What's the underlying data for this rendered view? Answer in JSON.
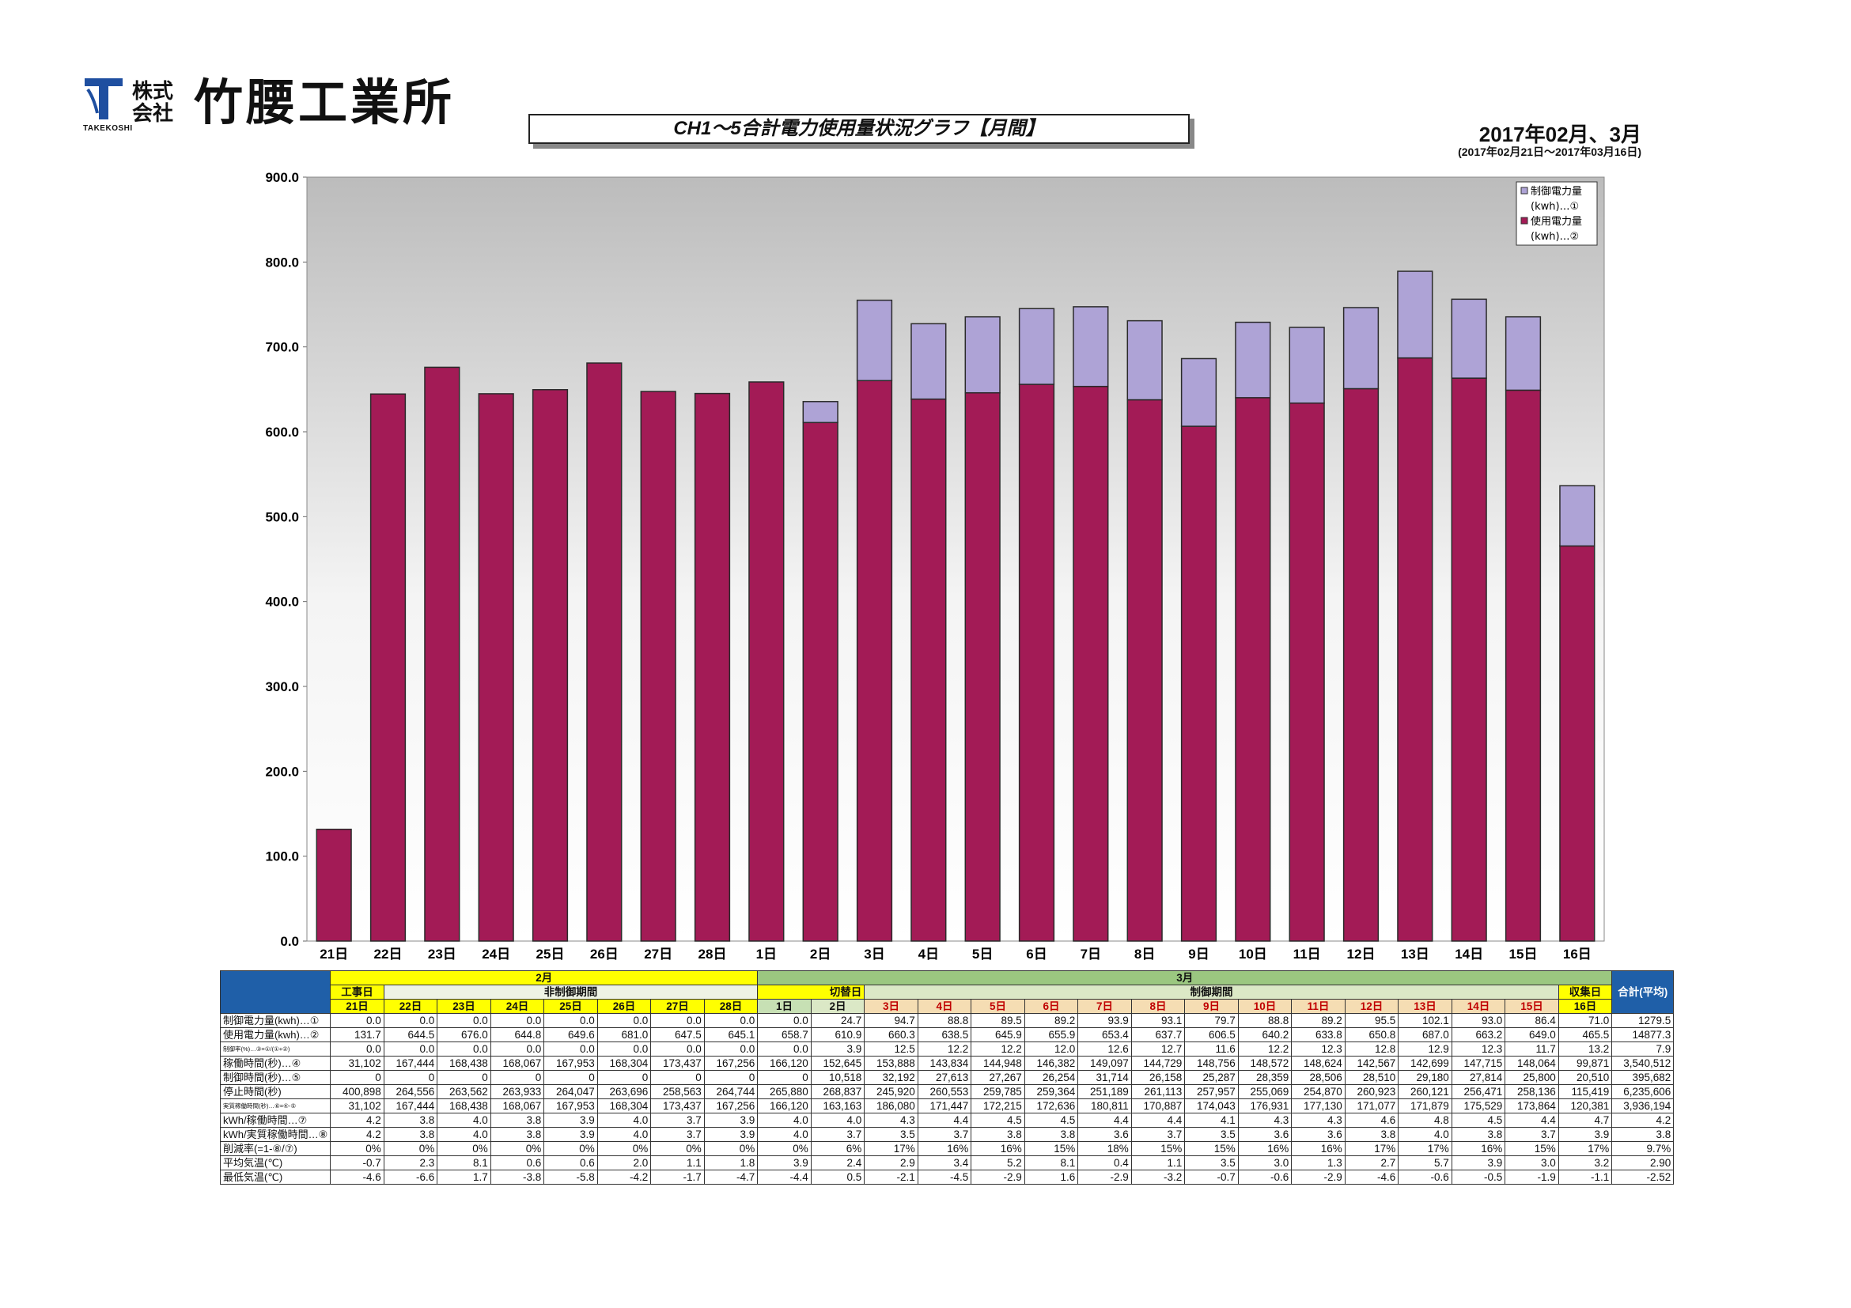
{
  "header": {
    "company_small_1": "株式",
    "company_small_2": "会社",
    "company_name": "竹腰工業所",
    "company_roman": "TAKEKOSHI",
    "title": "CH1～5合計電力使用量状況グラフ【月間】",
    "period": "2017年02月、3月",
    "period_range": "(2017年02月21日～2017年03月16日)"
  },
  "colors": {
    "used_bar": "#a31b56",
    "control_bar": "#aea3d6",
    "plot_background": "#e6e6e6",
    "table_blue": "#1f5fa8",
    "table_yellow": "#ffff00",
    "table_green": "#9bc780"
  },
  "chart_data": {
    "type": "bar",
    "stacked": true,
    "categories": [
      "21日",
      "22日",
      "23日",
      "24日",
      "25日",
      "26日",
      "27日",
      "28日",
      "1日",
      "2日",
      "3日",
      "4日",
      "5日",
      "6日",
      "7日",
      "8日",
      "9日",
      "10日",
      "11日",
      "12日",
      "13日",
      "14日",
      "15日",
      "16日"
    ],
    "series": [
      {
        "name": "使用電力量(kwh)…②",
        "color": "#a31b56",
        "values": [
          131.7,
          644.5,
          676.0,
          644.8,
          649.6,
          681.0,
          647.5,
          645.1,
          658.7,
          610.9,
          660.3,
          638.5,
          645.9,
          655.9,
          653.4,
          637.7,
          606.5,
          640.2,
          633.8,
          650.8,
          687.0,
          663.2,
          649.0,
          465.5
        ]
      },
      {
        "name": "制御電力量(kwh)…①",
        "color": "#aea3d6",
        "values": [
          0.0,
          0.0,
          0.0,
          0.0,
          0.0,
          0.0,
          0.0,
          0.0,
          0.0,
          24.7,
          94.7,
          88.8,
          89.5,
          89.2,
          93.9,
          93.1,
          79.7,
          88.8,
          89.2,
          95.5,
          102.1,
          93.0,
          86.4,
          71.0
        ]
      }
    ],
    "ylim": [
      0,
      900
    ],
    "yticks": [
      "0.0",
      "100.0",
      "200.0",
      "300.0",
      "400.0",
      "500.0",
      "600.0",
      "700.0",
      "800.0",
      "900.0"
    ],
    "legend": [
      "制御電力量",
      "(kwh)…①",
      "使用電力量",
      "(kwh)…②"
    ],
    "legend_position": "top-right",
    "grid": false
  },
  "table": {
    "month_feb": "2月",
    "month_mar": "3月",
    "period_labels": {
      "koji": "工事日",
      "hiseigyo": "非制御期間",
      "kirikae": "切替日",
      "seigyo": "制御期間",
      "shuushuu": "収集日"
    },
    "total_header": "合計(平均)",
    "days": [
      "21日",
      "22日",
      "23日",
      "24日",
      "25日",
      "26日",
      "27日",
      "28日",
      "1日",
      "2日",
      "3日",
      "4日",
      "5日",
      "6日",
      "7日",
      "8日",
      "9日",
      "10日",
      "11日",
      "12日",
      "13日",
      "14日",
      "15日",
      "16日"
    ],
    "rows": [
      {
        "label": "制御電力量(kwh)…①",
        "values": [
          "0.0",
          "0.0",
          "0.0",
          "0.0",
          "0.0",
          "0.0",
          "0.0",
          "0.0",
          "0.0",
          "24.7",
          "94.7",
          "88.8",
          "89.5",
          "89.2",
          "93.9",
          "93.1",
          "79.7",
          "88.8",
          "89.2",
          "95.5",
          "102.1",
          "93.0",
          "86.4",
          "71.0"
        ],
        "total": "1279.5"
      },
      {
        "label": "使用電力量(kwh)…②",
        "values": [
          "131.7",
          "644.5",
          "676.0",
          "644.8",
          "649.6",
          "681.0",
          "647.5",
          "645.1",
          "658.7",
          "610.9",
          "660.3",
          "638.5",
          "645.9",
          "655.9",
          "653.4",
          "637.7",
          "606.5",
          "640.2",
          "633.8",
          "650.8",
          "687.0",
          "663.2",
          "649.0",
          "465.5"
        ],
        "total": "14877.3"
      },
      {
        "label": "制御率(%)…③=①/(①+②)",
        "values": [
          "0.0",
          "0.0",
          "0.0",
          "0.0",
          "0.0",
          "0.0",
          "0.0",
          "0.0",
          "0.0",
          "3.9",
          "12.5",
          "12.2",
          "12.2",
          "12.0",
          "12.6",
          "12.7",
          "11.6",
          "12.2",
          "12.3",
          "12.8",
          "12.9",
          "12.3",
          "11.7",
          "13.2"
        ],
        "total": "7.9"
      },
      {
        "label": "稼働時間(秒)…④",
        "values": [
          "31,102",
          "167,444",
          "168,438",
          "168,067",
          "167,953",
          "168,304",
          "173,437",
          "167,256",
          "166,120",
          "152,645",
          "153,888",
          "143,834",
          "144,948",
          "146,382",
          "149,097",
          "144,729",
          "148,756",
          "148,572",
          "148,624",
          "142,567",
          "142,699",
          "147,715",
          "148,064",
          "99,871"
        ],
        "total": "3,540,512"
      },
      {
        "label": "制御時間(秒)…⑤",
        "values": [
          "0",
          "0",
          "0",
          "0",
          "0",
          "0",
          "0",
          "0",
          "0",
          "10,518",
          "32,192",
          "27,613",
          "27,267",
          "26,254",
          "31,714",
          "26,158",
          "25,287",
          "28,359",
          "28,506",
          "28,510",
          "29,180",
          "27,814",
          "25,800",
          "20,510"
        ],
        "total": "395,682"
      },
      {
        "label": "停止時間(秒)",
        "values": [
          "400,898",
          "264,556",
          "263,562",
          "263,933",
          "264,047",
          "263,696",
          "258,563",
          "264,744",
          "265,880",
          "268,837",
          "245,920",
          "260,553",
          "259,785",
          "259,364",
          "251,189",
          "261,113",
          "257,957",
          "255,069",
          "254,870",
          "260,923",
          "260,121",
          "256,471",
          "258,136",
          "115,419"
        ],
        "total": "6,235,606"
      },
      {
        "label": "実質稼働時間(秒)…⑥=④-⑤",
        "values": [
          "31,102",
          "167,444",
          "168,438",
          "168,067",
          "167,953",
          "168,304",
          "173,437",
          "167,256",
          "166,120",
          "163,163",
          "186,080",
          "171,447",
          "172,215",
          "172,636",
          "180,811",
          "170,887",
          "174,043",
          "176,931",
          "177,130",
          "171,077",
          "171,879",
          "175,529",
          "173,864",
          "120,381"
        ],
        "total": "3,936,194"
      },
      {
        "label": "kWh/稼働時間…⑦",
        "values": [
          "4.2",
          "3.8",
          "4.0",
          "3.8",
          "3.9",
          "4.0",
          "3.7",
          "3.9",
          "4.0",
          "4.0",
          "4.3",
          "4.4",
          "4.5",
          "4.5",
          "4.4",
          "4.4",
          "4.1",
          "4.3",
          "4.3",
          "4.6",
          "4.8",
          "4.5",
          "4.4",
          "4.7"
        ],
        "total": "4.2"
      },
      {
        "label": "kWh/実質稼働時間…⑧",
        "values": [
          "4.2",
          "3.8",
          "4.0",
          "3.8",
          "3.9",
          "4.0",
          "3.7",
          "3.9",
          "4.0",
          "3.7",
          "3.5",
          "3.7",
          "3.8",
          "3.8",
          "3.6",
          "3.7",
          "3.5",
          "3.6",
          "3.6",
          "3.8",
          "4.0",
          "3.8",
          "3.7",
          "3.9"
        ],
        "total": "3.8"
      },
      {
        "label": "削減率(=1-⑧/⑦)",
        "values": [
          "0%",
          "0%",
          "0%",
          "0%",
          "0%",
          "0%",
          "0%",
          "0%",
          "0%",
          "6%",
          "17%",
          "16%",
          "16%",
          "15%",
          "18%",
          "15%",
          "15%",
          "16%",
          "16%",
          "17%",
          "17%",
          "16%",
          "15%",
          "17%"
        ],
        "total": "9.7%"
      },
      {
        "label": "平均気温(℃)",
        "values": [
          "-0.7",
          "2.3",
          "8.1",
          "0.6",
          "0.6",
          "2.0",
          "1.1",
          "1.8",
          "3.9",
          "2.4",
          "2.9",
          "3.4",
          "5.2",
          "8.1",
          "0.4",
          "1.1",
          "3.5",
          "3.0",
          "1.3",
          "2.7",
          "5.7",
          "3.9",
          "3.0",
          "3.2"
        ],
        "total": "2.90"
      },
      {
        "label": "最低気温(℃)",
        "values": [
          "-4.6",
          "-6.6",
          "1.7",
          "-3.8",
          "-5.8",
          "-4.2",
          "-1.7",
          "-4.7",
          "-4.4",
          "0.5",
          "-2.1",
          "-4.5",
          "-2.9",
          "1.6",
          "-2.9",
          "-3.2",
          "-0.7",
          "-0.6",
          "-2.9",
          "-4.6",
          "-0.6",
          "-0.5",
          "-1.9",
          "-1.1"
        ],
        "total": "-2.52"
      }
    ]
  }
}
